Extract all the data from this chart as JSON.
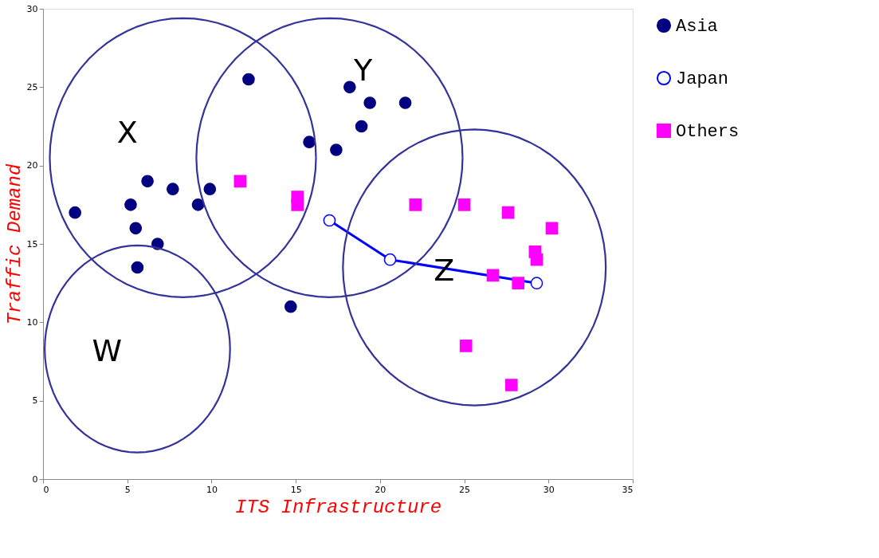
{
  "chart_data": {
    "type": "scatter",
    "xlabel": "ITS Infrastructure",
    "ylabel": "Traffic Demand",
    "xlim": [
      0,
      35
    ],
    "xticks": [
      0,
      5,
      10,
      15,
      20,
      25,
      30,
      35
    ],
    "ylim": [
      0,
      30
    ],
    "yticks": [
      0,
      5,
      10,
      15,
      20,
      25,
      30
    ],
    "grid": false,
    "legend": "right",
    "series": [
      {
        "name": "Asia",
        "type": "scatter",
        "marker": "circle",
        "color": "#000080",
        "x": [
          1.9,
          5.2,
          5.5,
          5.6,
          6.2,
          6.8,
          7.7,
          9.2,
          9.9,
          12.2,
          14.7,
          15.8,
          17.4,
          18.2,
          18.9,
          19.4,
          21.5
        ],
        "values": [
          17,
          17.5,
          16,
          13.5,
          19,
          15,
          18.5,
          17.5,
          18.5,
          25.5,
          11,
          21.5,
          21,
          25,
          22.5,
          24,
          24
        ]
      },
      {
        "name": "Japan",
        "type": "line",
        "marker": "circle",
        "color": "#0000ff",
        "x": [
          17.0,
          20.6,
          29.3
        ],
        "values": [
          16.5,
          14,
          12.5
        ]
      },
      {
        "name": "Others",
        "type": "scatter",
        "marker": "square",
        "color": "#ff00ff",
        "x": [
          11.7,
          15.1,
          15.1,
          22.1,
          25.0,
          27.6,
          30.2,
          29.2,
          29.3,
          26.7,
          28.2,
          25.1,
          27.8
        ],
        "values": [
          19,
          18,
          17.5,
          17.5,
          17.5,
          17,
          16,
          14.5,
          14,
          13,
          12.5,
          8.5,
          6
        ]
      }
    ],
    "annotations": [
      "X",
      "Y",
      "Z",
      "W"
    ]
  }
}
